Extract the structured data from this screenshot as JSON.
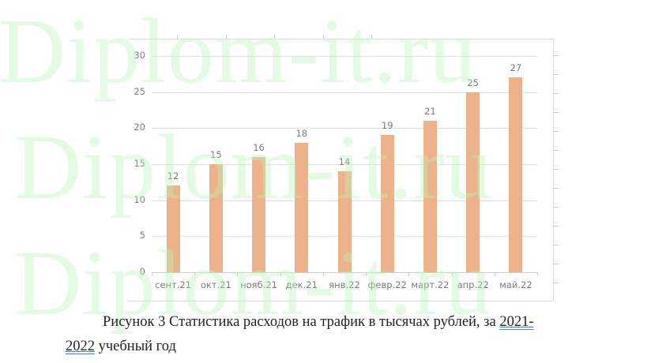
{
  "chart_data": {
    "type": "bar",
    "title": "",
    "xlabel": "",
    "ylabel": "",
    "categories": [
      "сент.21",
      "окт.21",
      "нояб.21",
      "дек.21",
      "янв.22",
      "февр.22",
      "март.22",
      "апр.22",
      "май.22"
    ],
    "values": [
      12,
      15,
      16,
      18,
      14,
      19,
      21,
      25,
      27
    ],
    "data_labels": [
      "12",
      "15",
      "16",
      "18",
      "14",
      "19",
      "21",
      "25",
      "27"
    ],
    "ylim": [
      0,
      30
    ],
    "yticks": [
      "0",
      "5",
      "10",
      "15",
      "20",
      "25",
      "30"
    ],
    "grid": true,
    "legend": "none",
    "bar_color": "#edb28a"
  },
  "caption": {
    "line1_prefix": "Рисунок 3 Статистика расходов на трафик в тысячах рублей, за ",
    "line1_year": "2021-",
    "line2_year": "2022",
    "line2_suffix": " учебный год"
  },
  "watermark": {
    "text": "Diplom-it.ru",
    "color": "#b6f7b6"
  }
}
